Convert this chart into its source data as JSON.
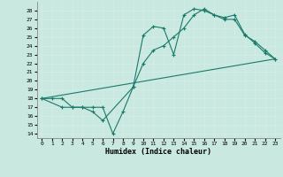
{
  "xlabel": "Humidex (Indice chaleur)",
  "bg_color": "#c8e8e0",
  "grid_color": "#d4ece6",
  "line_color": "#1a7a6a",
  "xlim": [
    -0.5,
    23.5
  ],
  "ylim": [
    13.5,
    29
  ],
  "xticks": [
    0,
    1,
    2,
    3,
    4,
    5,
    6,
    7,
    8,
    9,
    10,
    11,
    12,
    13,
    14,
    15,
    16,
    17,
    18,
    19,
    20,
    21,
    22,
    23
  ],
  "yticks": [
    14,
    15,
    16,
    17,
    18,
    19,
    20,
    21,
    22,
    23,
    24,
    25,
    26,
    27,
    28
  ],
  "line1_x": [
    0,
    1,
    2,
    3,
    4,
    5,
    6,
    7,
    8,
    9,
    10,
    11,
    12,
    13,
    14,
    15,
    16,
    17,
    18,
    19,
    20,
    21,
    22,
    23
  ],
  "line1_y": [
    18,
    18,
    18,
    17,
    17,
    17,
    17,
    14,
    16.5,
    19.3,
    25.2,
    26.2,
    26.0,
    23.0,
    27.5,
    28.2,
    28.0,
    27.5,
    27.2,
    27.5,
    25.3,
    24.3,
    23.2,
    22.5
  ],
  "line2_x": [
    0,
    2,
    3,
    4,
    5,
    6,
    9,
    10,
    11,
    12,
    13,
    14,
    15,
    16,
    17,
    18,
    19,
    20,
    21,
    22,
    23
  ],
  "line2_y": [
    18,
    17,
    17,
    17,
    16.5,
    15.5,
    19.3,
    22.0,
    23.5,
    24.0,
    25.0,
    26.0,
    27.5,
    28.2,
    27.5,
    27.0,
    27.0,
    25.2,
    24.5,
    23.5,
    22.5
  ],
  "line3_x": [
    0,
    23
  ],
  "line3_y": [
    18,
    22.5
  ]
}
